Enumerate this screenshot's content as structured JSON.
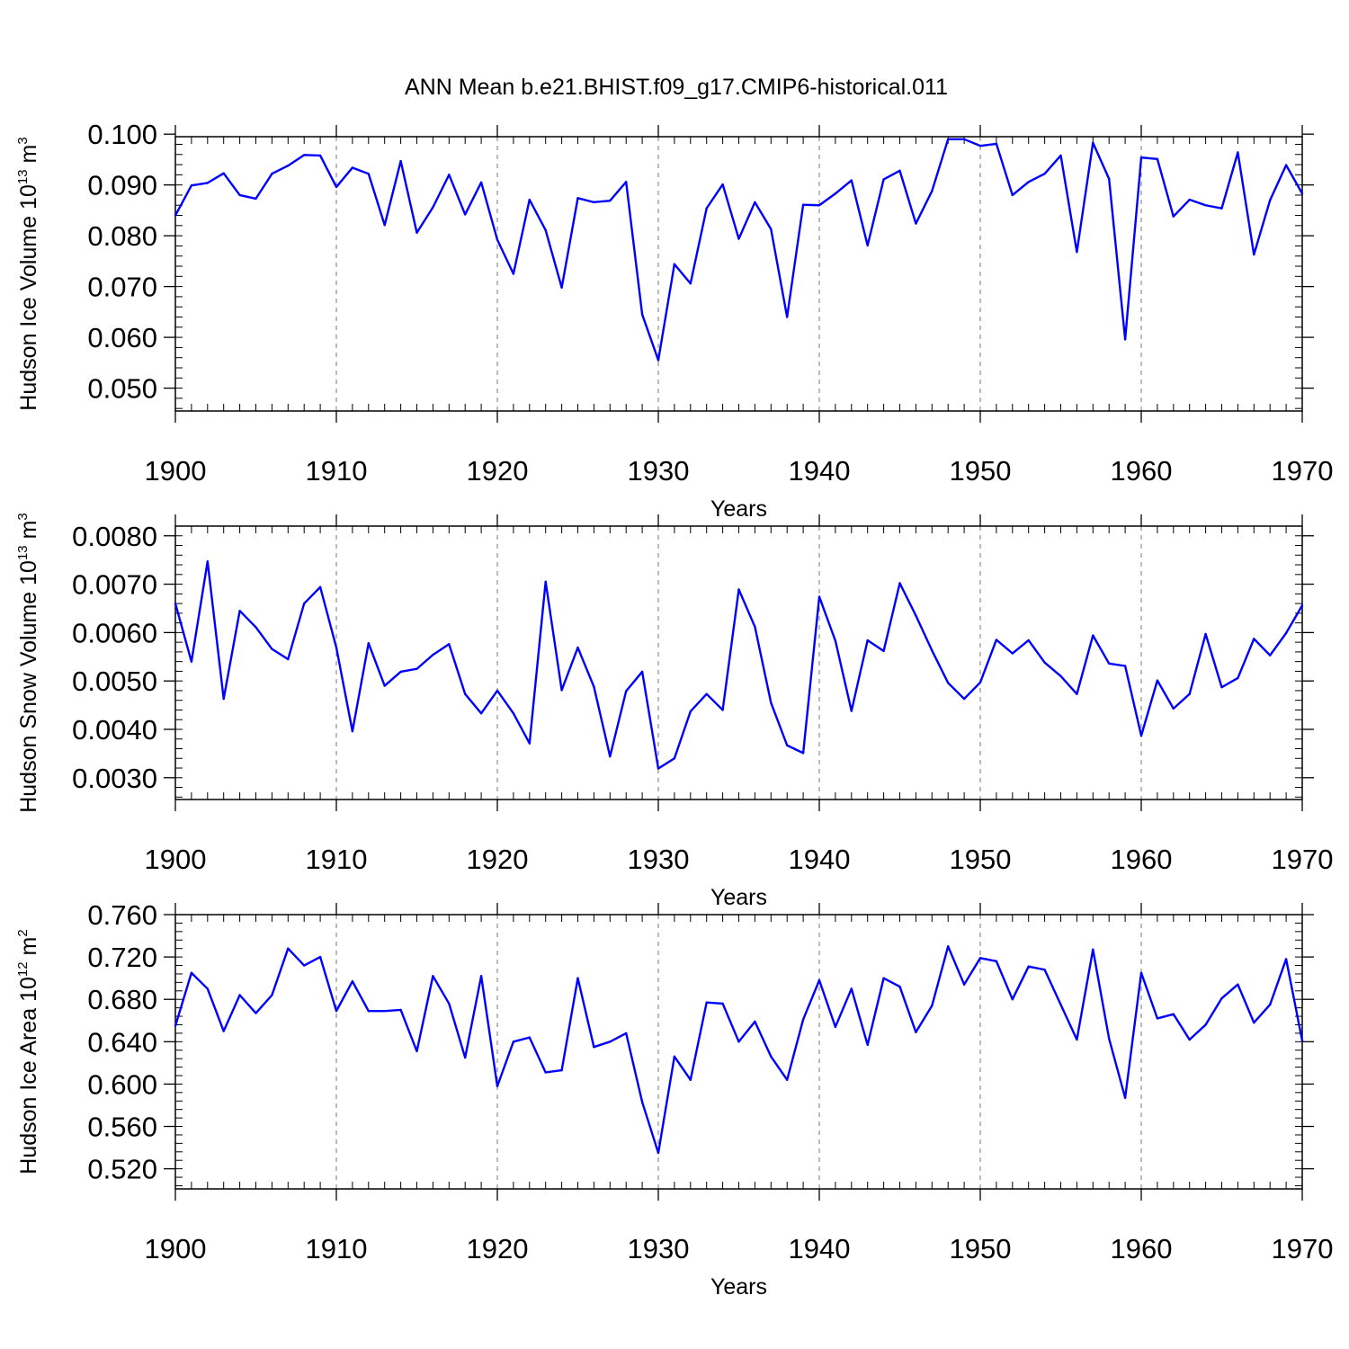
{
  "title": "ANN Mean b.e21.BHIST.f09_g17.CMIP6-historical.011",
  "colors": {
    "line": "#0000ff",
    "axis": "#000000",
    "grid": "#777777"
  },
  "chart_data": [
    {
      "type": "line",
      "name": "ice-volume",
      "ylabel": "Hudson Ice Volume 10",
      "ylabel_exp": "13",
      "ylabel_unit": " m",
      "ylabel_unit_exp": "3",
      "xlabel": "Years",
      "xlim": [
        1900,
        1970
      ],
      "ylim": [
        0.0455,
        0.0995
      ],
      "yticks": [
        0.05,
        0.06,
        0.07,
        0.08,
        0.09,
        0.1
      ],
      "ytick_labels": [
        "0.050",
        "0.060",
        "0.070",
        "0.080",
        "0.090",
        "0.100"
      ],
      "xticks": [
        1900,
        1910,
        1920,
        1930,
        1940,
        1950,
        1960,
        1970
      ],
      "xtick_labels": [
        "1900",
        "1910",
        "1920",
        "1930",
        "1940",
        "1950",
        "1960",
        "1970"
      ],
      "x": [
        1900,
        1901,
        1902,
        1903,
        1904,
        1905,
        1906,
        1907,
        1908,
        1909,
        1910,
        1911,
        1912,
        1913,
        1914,
        1915,
        1916,
        1917,
        1918,
        1919,
        1920,
        1921,
        1922,
        1923,
        1924,
        1925,
        1926,
        1927,
        1928,
        1929,
        1930,
        1931,
        1932,
        1933,
        1934,
        1935,
        1936,
        1937,
        1938,
        1939,
        1940,
        1941,
        1942,
        1943,
        1944,
        1945,
        1946,
        1947,
        1948,
        1949,
        1950,
        1951,
        1952,
        1953,
        1954,
        1955,
        1956,
        1957,
        1958,
        1959,
        1960,
        1961,
        1962,
        1963,
        1964,
        1965,
        1966,
        1967,
        1968,
        1969,
        1970
      ],
      "values": [
        0.084,
        0.0899,
        0.0904,
        0.0923,
        0.088,
        0.0873,
        0.0922,
        0.0938,
        0.0959,
        0.0958,
        0.0896,
        0.0934,
        0.0922,
        0.0821,
        0.0947,
        0.0806,
        0.0856,
        0.092,
        0.0842,
        0.0905,
        0.0792,
        0.0725,
        0.0871,
        0.0811,
        0.0698,
        0.0874,
        0.0866,
        0.0869,
        0.0906,
        0.0645,
        0.0555,
        0.0744,
        0.0706,
        0.0854,
        0.0901,
        0.0794,
        0.0866,
        0.0813,
        0.064,
        0.0861,
        0.086,
        0.0883,
        0.0909,
        0.0781,
        0.0911,
        0.0928,
        0.0824,
        0.0888,
        0.099,
        0.099,
        0.0977,
        0.0981,
        0.088,
        0.0906,
        0.0922,
        0.0958,
        0.0768,
        0.0983,
        0.0912,
        0.0596,
        0.0954,
        0.0951,
        0.0838,
        0.0871,
        0.086,
        0.0854,
        0.0964,
        0.0763,
        0.087,
        0.0939,
        0.0883
      ]
    },
    {
      "type": "line",
      "name": "snow-volume",
      "ylabel": "Hudson Snow Volume 10",
      "ylabel_exp": "13",
      "ylabel_unit": " m",
      "ylabel_unit_exp": "3",
      "xlabel": "Years",
      "xlim": [
        1900,
        1970
      ],
      "ylim": [
        0.00255,
        0.0082
      ],
      "yticks": [
        0.003,
        0.004,
        0.005,
        0.006,
        0.007,
        0.008
      ],
      "ytick_labels": [
        "0.0030",
        "0.0040",
        "0.0050",
        "0.0060",
        "0.0070",
        "0.0080"
      ],
      "xticks": [
        1900,
        1910,
        1920,
        1930,
        1940,
        1950,
        1960,
        1970
      ],
      "xtick_labels": [
        "1900",
        "1910",
        "1920",
        "1930",
        "1940",
        "1950",
        "1960",
        "1970"
      ],
      "x": [
        1900,
        1901,
        1902,
        1903,
        1904,
        1905,
        1906,
        1907,
        1908,
        1909,
        1910,
        1911,
        1912,
        1913,
        1914,
        1915,
        1916,
        1917,
        1918,
        1919,
        1920,
        1921,
        1922,
        1923,
        1924,
        1925,
        1926,
        1927,
        1928,
        1929,
        1930,
        1931,
        1932,
        1933,
        1934,
        1935,
        1936,
        1937,
        1938,
        1939,
        1940,
        1941,
        1942,
        1943,
        1944,
        1945,
        1946,
        1947,
        1948,
        1949,
        1950,
        1951,
        1952,
        1953,
        1954,
        1955,
        1956,
        1957,
        1958,
        1959,
        1960,
        1961,
        1962,
        1963,
        1964,
        1965,
        1966,
        1967,
        1968,
        1969,
        1970
      ],
      "values": [
        0.0066,
        0.0054,
        0.00747,
        0.00463,
        0.00645,
        0.00611,
        0.00566,
        0.00545,
        0.0066,
        0.00694,
        0.00569,
        0.00396,
        0.00578,
        0.0049,
        0.00519,
        0.00525,
        0.00554,
        0.00576,
        0.00473,
        0.00433,
        0.0048,
        0.00433,
        0.00371,
        0.00705,
        0.00481,
        0.00569,
        0.00488,
        0.00344,
        0.00479,
        0.00519,
        0.00319,
        0.0034,
        0.00437,
        0.00473,
        0.0044,
        0.00689,
        0.00612,
        0.00455,
        0.00367,
        0.00351,
        0.00674,
        0.00583,
        0.00438,
        0.00584,
        0.00562,
        0.00702,
        0.00635,
        0.00563,
        0.00496,
        0.00463,
        0.00497,
        0.00585,
        0.00557,
        0.00584,
        0.00538,
        0.0051,
        0.00473,
        0.00594,
        0.00536,
        0.00531,
        0.00387,
        0.00501,
        0.00443,
        0.00473,
        0.00597,
        0.00487,
        0.00506,
        0.00587,
        0.00553,
        0.00599,
        0.00656
      ]
    },
    {
      "type": "line",
      "name": "ice-area",
      "ylabel": "Hudson Ice Area 10",
      "ylabel_exp": "12",
      "ylabel_unit": " m",
      "ylabel_unit_exp": "2",
      "xlabel": "Years",
      "xlim": [
        1900,
        1970
      ],
      "ylim": [
        0.501,
        0.76
      ],
      "yticks": [
        0.52,
        0.56,
        0.6,
        0.64,
        0.68,
        0.72,
        0.76
      ],
      "ytick_labels": [
        "0.520",
        "0.560",
        "0.600",
        "0.640",
        "0.680",
        "0.720",
        "0.760"
      ],
      "xticks": [
        1900,
        1910,
        1920,
        1930,
        1940,
        1950,
        1960,
        1970
      ],
      "xtick_labels": [
        "1900",
        "1910",
        "1920",
        "1930",
        "1940",
        "1950",
        "1960",
        "1970"
      ],
      "x": [
        1900,
        1901,
        1902,
        1903,
        1904,
        1905,
        1906,
        1907,
        1908,
        1909,
        1910,
        1911,
        1912,
        1913,
        1914,
        1915,
        1916,
        1917,
        1918,
        1919,
        1920,
        1921,
        1922,
        1923,
        1924,
        1925,
        1926,
        1927,
        1928,
        1929,
        1930,
        1931,
        1932,
        1933,
        1934,
        1935,
        1936,
        1937,
        1938,
        1939,
        1940,
        1941,
        1942,
        1943,
        1944,
        1945,
        1946,
        1947,
        1948,
        1949,
        1950,
        1951,
        1952,
        1953,
        1954,
        1955,
        1956,
        1957,
        1958,
        1959,
        1960,
        1961,
        1962,
        1963,
        1964,
        1965,
        1966,
        1967,
        1968,
        1969,
        1970
      ],
      "values": [
        0.655,
        0.705,
        0.69,
        0.65,
        0.684,
        0.667,
        0.684,
        0.728,
        0.712,
        0.72,
        0.669,
        0.697,
        0.669,
        0.669,
        0.67,
        0.631,
        0.702,
        0.676,
        0.625,
        0.702,
        0.598,
        0.64,
        0.644,
        0.611,
        0.613,
        0.7,
        0.635,
        0.64,
        0.648,
        0.583,
        0.535,
        0.626,
        0.604,
        0.677,
        0.676,
        0.64,
        0.659,
        0.626,
        0.604,
        0.661,
        0.698,
        0.654,
        0.69,
        0.637,
        0.7,
        0.692,
        0.649,
        0.674,
        0.73,
        0.694,
        0.719,
        0.716,
        0.68,
        0.711,
        0.708,
        0.675,
        0.642,
        0.727,
        0.643,
        0.587,
        0.705,
        0.662,
        0.666,
        0.642,
        0.656,
        0.681,
        0.694,
        0.658,
        0.675,
        0.718,
        0.641
      ]
    }
  ]
}
